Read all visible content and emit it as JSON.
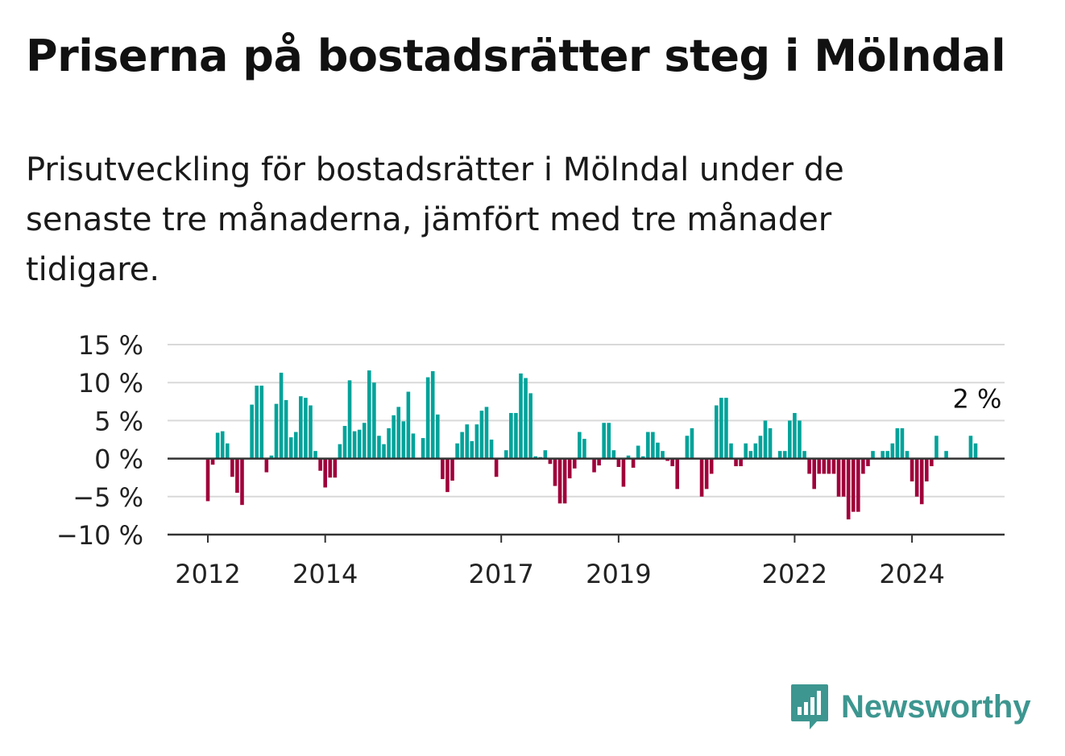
{
  "title": "Priserna på bostadsrätter steg i Mölndal",
  "subtitle": "Prisutveckling för bostadsrätter i Mölndal under de senaste tre månaderna, jämfört med tre månader tidigare.",
  "brand": "Newsworthy",
  "colors": {
    "positive": "#00a39a",
    "negative": "#a0003a",
    "grid": "#d9d9d9",
    "axis": "#333333",
    "brand": "#3d9690"
  },
  "chart_data": {
    "type": "bar",
    "title": "",
    "xlabel": "",
    "ylabel": "",
    "ylim": [
      -10,
      15
    ],
    "y_ticks": [
      15,
      10,
      5,
      0,
      -5,
      -10
    ],
    "y_tick_labels": [
      "15 %",
      "10 %",
      "5 %",
      "0 %",
      "−5 %",
      "−10 %"
    ],
    "x_ticks": [
      "2012",
      "2014",
      "2017",
      "2019",
      "2022",
      "2024"
    ],
    "x_tick_positions_month": [
      0,
      24,
      60,
      84,
      120,
      144
    ],
    "start": "2012-01",
    "last_label": "2 %",
    "values": [
      -5.6,
      -0.8,
      3.4,
      3.6,
      2.0,
      -2.4,
      -4.5,
      -6.1,
      0.0,
      7.1,
      9.6,
      9.6,
      -1.8,
      0.4,
      7.2,
      11.3,
      7.7,
      2.8,
      3.5,
      8.2,
      8.0,
      7.0,
      1.0,
      -1.6,
      -3.8,
      -2.5,
      -2.5,
      1.9,
      4.3,
      10.3,
      3.6,
      3.8,
      4.7,
      11.6,
      10.0,
      3.0,
      1.9,
      4.0,
      5.7,
      6.8,
      4.9,
      8.8,
      3.3,
      0.0,
      2.7,
      10.7,
      11.5,
      5.8,
      -2.7,
      -4.4,
      -2.9,
      2.0,
      3.5,
      4.5,
      2.3,
      4.5,
      6.3,
      6.8,
      2.5,
      -2.4,
      0.0,
      1.1,
      6.0,
      6.0,
      11.2,
      10.6,
      8.6,
      0.3,
      0.2,
      1.1,
      -0.7,
      -3.6,
      -5.9,
      -5.9,
      -2.6,
      -1.3,
      3.5,
      2.6,
      0.0,
      -1.8,
      -0.9,
      4.7,
      4.7,
      1.1,
      -1.1,
      -3.7,
      0.4,
      -1.2,
      1.7,
      0.3,
      3.5,
      3.5,
      2.1,
      1.0,
      -0.3,
      -1.0,
      -4.0,
      0.0,
      3.0,
      4.0,
      0.0,
      -5.0,
      -4.0,
      -2.0,
      7.0,
      8.0,
      8.0,
      2.0,
      -1.0,
      -1.0,
      2.0,
      1.0,
      2.0,
      3.0,
      5.0,
      4.0,
      0.0,
      1.0,
      1.0,
      5.0,
      6.0,
      5.0,
      1.0,
      -2.0,
      -4.0,
      -2.0,
      -2.0,
      -2.0,
      -2.0,
      -5.0,
      -5.0,
      -8.0,
      -7.0,
      -7.0,
      -2.0,
      -1.0,
      1.0,
      0.0,
      1.0,
      1.0,
      2.0,
      4.0,
      4.0,
      1.0,
      -3.0,
      -5.0,
      -6.0,
      -3.0,
      -1.0,
      3.0,
      0.0,
      1.0,
      0.0,
      0.0,
      0.0,
      0.0,
      3.0,
      2.0
    ]
  }
}
